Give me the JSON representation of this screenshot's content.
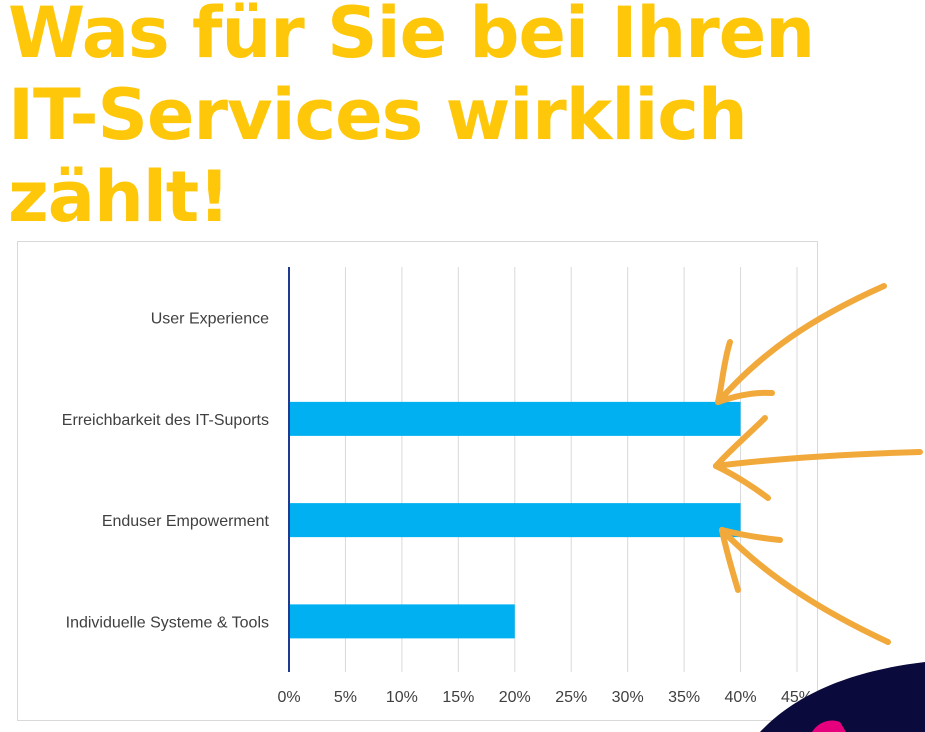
{
  "headline": {
    "line1": "Was für Sie bei Ihren",
    "line2": "IT-Services wirklich",
    "line3": "zählt!"
  },
  "colors": {
    "headline": "#FFC70A",
    "bar": "#00B0F0",
    "axis": "#1F3A93",
    "grid": "#d9d9d9",
    "arrow": "#F2A93B",
    "corner_dark": "#0A0A3C",
    "corner_accent": "#E6007E"
  },
  "chart_data": {
    "type": "bar",
    "orientation": "horizontal",
    "categories": [
      "User Experience",
      "Erreichbarkeit des IT-Suports",
      "Enduser Empowerment",
      "Individuelle Systeme & Tools"
    ],
    "values": [
      0,
      40,
      40,
      20
    ],
    "xlim": [
      0,
      45
    ],
    "x_ticks": [
      0,
      5,
      10,
      15,
      20,
      25,
      30,
      35,
      40,
      45
    ],
    "x_tick_labels": [
      "0%",
      "5%",
      "10%",
      "15%",
      "20%",
      "25%",
      "30%",
      "35%",
      "40%",
      "45%"
    ],
    "title": "",
    "xlabel": "",
    "ylabel": "",
    "grid": "vertical",
    "legend": "none"
  }
}
